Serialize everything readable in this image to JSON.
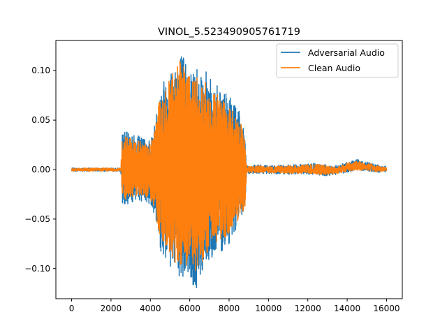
{
  "colors": {
    "adversarial": "#1f77b4",
    "clean": "#ff7f0e",
    "axes": "#000000",
    "legend_border": "#cccccc"
  },
  "chart_data": {
    "type": "line",
    "title": "VINOL_5.523490905761719",
    "xlabel": "",
    "ylabel": "",
    "xlim": [
      -800,
      16800
    ],
    "ylim": [
      -0.1305,
      0.1305
    ],
    "x_ticks": [
      0,
      2000,
      4000,
      6000,
      8000,
      10000,
      12000,
      14000,
      16000
    ],
    "x_tick_labels": [
      "0",
      "2000",
      "4000",
      "6000",
      "8000",
      "10000",
      "12000",
      "14000",
      "16000"
    ],
    "y_ticks": [
      -0.1,
      -0.05,
      0.0,
      0.05,
      0.1
    ],
    "y_tick_labels": [
      "−0.10",
      "−0.05",
      "0.00",
      "0.05",
      "0.10"
    ],
    "grid": false,
    "legend_position": "upper-right",
    "series": [
      {
        "name": "Adversarial Audio",
        "color": "#1f77b4",
        "envelope": {
          "x": [
            0,
            500,
            1000,
            1500,
            2000,
            2500,
            2550,
            2800,
            3200,
            3600,
            4000,
            4200,
            4500,
            5000,
            5500,
            6000,
            6300,
            6600,
            7000,
            7500,
            8000,
            8500,
            8800,
            8900,
            9500,
            10000,
            11000,
            12000,
            12500,
            13000,
            13500,
            14000,
            14500,
            15000,
            15500,
            16000
          ],
          "upper": [
            0.002,
            0.002,
            0.002,
            0.002,
            0.002,
            0.002,
            0.038,
            0.038,
            0.035,
            0.033,
            0.03,
            0.045,
            0.085,
            0.105,
            0.125,
            0.1,
            0.11,
            0.105,
            0.095,
            0.085,
            0.075,
            0.06,
            0.035,
            0.005,
            0.006,
            0.005,
            0.006,
            0.007,
            0.008,
            0.006,
            0.005,
            0.009,
            0.012,
            0.01,
            0.006,
            0.004
          ],
          "lower": [
            -0.002,
            -0.002,
            -0.002,
            -0.002,
            -0.002,
            -0.002,
            -0.035,
            -0.035,
            -0.033,
            -0.032,
            -0.035,
            -0.045,
            -0.085,
            -0.1,
            -0.115,
            -0.11,
            -0.13,
            -0.105,
            -0.09,
            -0.085,
            -0.075,
            -0.055,
            -0.045,
            -0.005,
            -0.005,
            -0.005,
            -0.006,
            -0.006,
            -0.007,
            -0.008,
            -0.006,
            -0.004,
            -0.002,
            -0.003,
            -0.004,
            -0.003
          ]
        }
      },
      {
        "name": "Clean Audio",
        "color": "#ff7f0e",
        "envelope": {
          "x": [
            0,
            500,
            1000,
            1500,
            2000,
            2500,
            2550,
            2800,
            3200,
            3600,
            4000,
            4200,
            4500,
            5000,
            5500,
            6000,
            6300,
            6600,
            7000,
            7500,
            8000,
            8500,
            8800,
            8900,
            9500,
            10000,
            11000,
            12000,
            12500,
            13000,
            13500,
            14000,
            14500,
            15000,
            15500,
            16000
          ],
          "upper": [
            0.002,
            0.002,
            0.002,
            0.002,
            0.002,
            0.002,
            0.033,
            0.033,
            0.03,
            0.028,
            0.027,
            0.04,
            0.075,
            0.095,
            0.11,
            0.095,
            0.1,
            0.095,
            0.085,
            0.075,
            0.065,
            0.055,
            0.03,
            0.004,
            0.005,
            0.004,
            0.005,
            0.006,
            0.007,
            0.005,
            0.004,
            0.008,
            0.01,
            0.008,
            0.005,
            0.003
          ],
          "lower": [
            -0.002,
            -0.002,
            -0.002,
            -0.002,
            -0.002,
            -0.002,
            -0.03,
            -0.03,
            -0.028,
            -0.027,
            -0.03,
            -0.04,
            -0.075,
            -0.09,
            -0.1,
            -0.095,
            -0.105,
            -0.095,
            -0.08,
            -0.075,
            -0.065,
            -0.05,
            -0.04,
            -0.004,
            -0.004,
            -0.004,
            -0.005,
            -0.005,
            -0.006,
            -0.007,
            -0.005,
            -0.003,
            -0.002,
            -0.002,
            -0.003,
            -0.002
          ]
        }
      }
    ]
  }
}
